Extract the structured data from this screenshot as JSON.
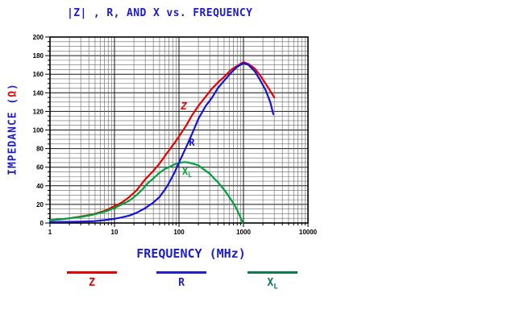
{
  "chart_data": {
    "type": "line",
    "title": "|Z| , R, AND X vs. FREQUENCY",
    "xlabel": "FREQUENCY (MHz)",
    "ylabel_prefix": "IMPEDANCE (",
    "ylabel_omega": "Ω",
    "ylabel_suffix": ")",
    "x_scale": "log",
    "xlim": [
      1,
      10000
    ],
    "ylim": [
      0,
      200
    ],
    "y_major_step": 20,
    "y_minor_step": 5,
    "grid": true,
    "x_ticks": [
      1,
      10,
      100,
      1000,
      10000
    ],
    "x_tick_labels": [
      "1",
      "10",
      "100",
      "1000",
      "10000"
    ],
    "y_ticks": [
      0,
      20,
      40,
      60,
      80,
      100,
      120,
      140,
      160,
      180,
      200
    ],
    "y_tick_labels": [
      "0",
      "20",
      "40",
      "60",
      "80",
      "100",
      "120",
      "140",
      "160",
      "180",
      "200"
    ],
    "series": [
      {
        "name": "Z",
        "color": "#e60000",
        "points": [
          [
            1,
            3
          ],
          [
            1.5,
            4
          ],
          [
            2,
            5
          ],
          [
            3,
            7
          ],
          [
            4,
            8.5
          ],
          [
            5,
            10
          ],
          [
            7,
            13
          ],
          [
            10,
            18
          ],
          [
            13,
            22
          ],
          [
            17,
            28
          ],
          [
            22,
            35
          ],
          [
            30,
            47
          ],
          [
            40,
            56
          ],
          [
            50,
            64
          ],
          [
            65,
            75
          ],
          [
            85,
            86
          ],
          [
            100,
            93
          ],
          [
            130,
            105
          ],
          [
            160,
            116
          ],
          [
            200,
            126
          ],
          [
            260,
            136
          ],
          [
            320,
            144
          ],
          [
            400,
            151
          ],
          [
            500,
            157
          ],
          [
            650,
            165
          ],
          [
            800,
            169
          ],
          [
            1000,
            173
          ],
          [
            1200,
            171
          ],
          [
            1500,
            166
          ],
          [
            1800,
            159
          ],
          [
            2200,
            150
          ],
          [
            2600,
            142
          ],
          [
            3000,
            135
          ]
        ]
      },
      {
        "name": "X",
        "color": "#00a13c",
        "points": [
          [
            1,
            3
          ],
          [
            1.5,
            4
          ],
          [
            2,
            5
          ],
          [
            3,
            6.5
          ],
          [
            4,
            8
          ],
          [
            5,
            9.5
          ],
          [
            7,
            12
          ],
          [
            10,
            16
          ],
          [
            13,
            20
          ],
          [
            17,
            24
          ],
          [
            22,
            30
          ],
          [
            27,
            36
          ],
          [
            33,
            43
          ],
          [
            40,
            48
          ],
          [
            50,
            54
          ],
          [
            60,
            58
          ],
          [
            70,
            60
          ],
          [
            85,
            63
          ],
          [
            100,
            64.5
          ],
          [
            120,
            65.5
          ],
          [
            140,
            65
          ],
          [
            170,
            63.5
          ],
          [
            200,
            62
          ],
          [
            250,
            57
          ],
          [
            300,
            53
          ],
          [
            350,
            48
          ],
          [
            400,
            44
          ],
          [
            500,
            36
          ],
          [
            600,
            28
          ],
          [
            700,
            21
          ],
          [
            800,
            14
          ],
          [
            900,
            6
          ],
          [
            950,
            2
          ],
          [
            975,
            0
          ]
        ]
      },
      {
        "name": "R",
        "color": "#1414d2",
        "points": [
          [
            1,
            1
          ],
          [
            2,
            1.2
          ],
          [
            3,
            1.5
          ],
          [
            5,
            2
          ],
          [
            7,
            3
          ],
          [
            10,
            4.5
          ],
          [
            13,
            6
          ],
          [
            17,
            8
          ],
          [
            22,
            11
          ],
          [
            30,
            16
          ],
          [
            40,
            22
          ],
          [
            50,
            28
          ],
          [
            65,
            39
          ],
          [
            85,
            54
          ],
          [
            100,
            65
          ],
          [
            130,
            82
          ],
          [
            160,
            96
          ],
          [
            200,
            112
          ],
          [
            260,
            126
          ],
          [
            320,
            134
          ],
          [
            400,
            145
          ],
          [
            500,
            153
          ],
          [
            650,
            162
          ],
          [
            800,
            168
          ],
          [
            1000,
            172
          ],
          [
            1200,
            170
          ],
          [
            1500,
            163
          ],
          [
            1800,
            154
          ],
          [
            2200,
            143
          ],
          [
            2600,
            130
          ],
          [
            2900,
            117
          ]
        ]
      }
    ],
    "annotations": [
      {
        "text": "Z",
        "x": 119,
        "y": 122,
        "color": "#e60000",
        "italic": true
      },
      {
        "text": "R",
        "x": 158,
        "y": 83,
        "color": "#1414d2",
        "italic": false
      },
      {
        "text": "X",
        "sub": "L",
        "x": 133,
        "y": 52,
        "color": "#00a13c",
        "italic": false
      }
    ],
    "legend": {
      "position": "bottom",
      "items": [
        {
          "label": "Z",
          "color": "#e60000"
        },
        {
          "label": "R",
          "color": "#2020cc"
        },
        {
          "label": "X",
          "sub": "L",
          "color": "#0f7a50"
        }
      ]
    }
  }
}
